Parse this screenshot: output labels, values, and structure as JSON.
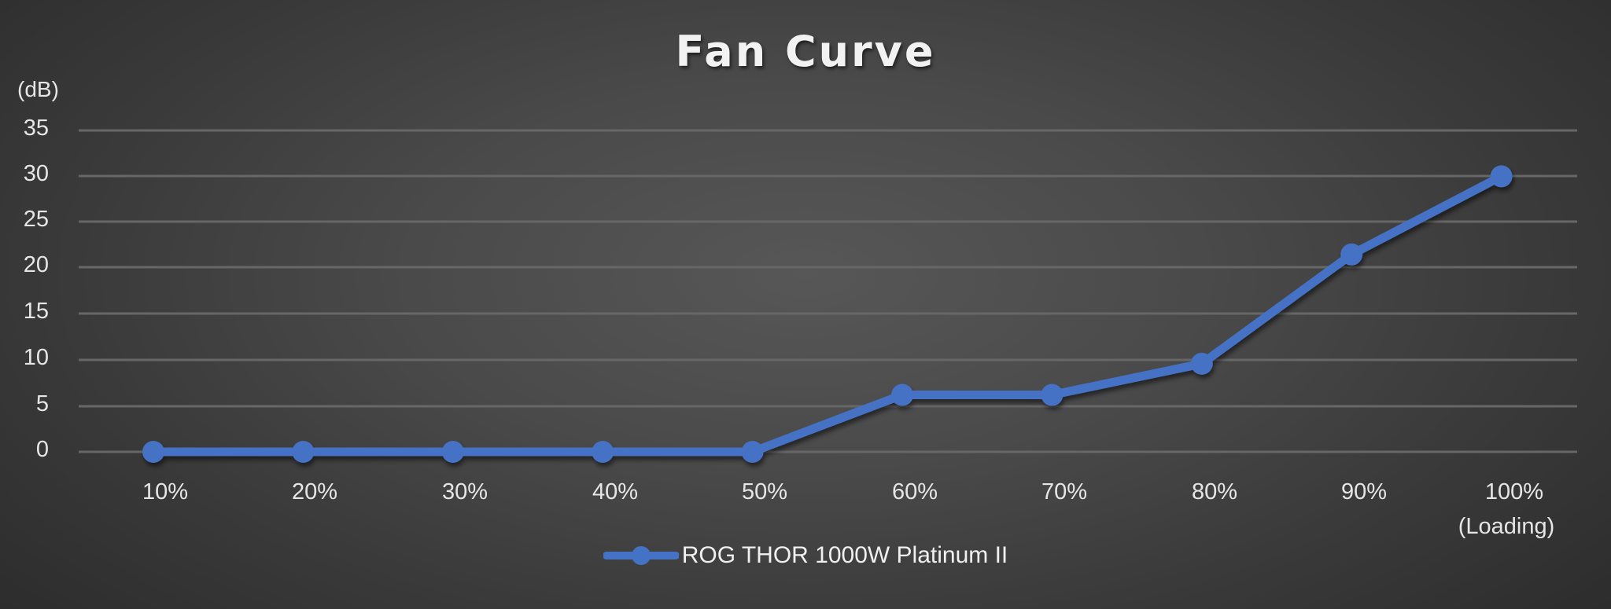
{
  "chart_data": {
    "type": "line",
    "title": "Fan Curve",
    "xlabel": "",
    "ylabel": "(dB)",
    "categories": [
      "10%",
      "20%",
      "30%",
      "40%",
      "50%",
      "60%",
      "70%",
      "80%",
      "90%",
      "100%\n(Loading)"
    ],
    "series": [
      {
        "name": "ROG THOR 1000W Platinum II",
        "color": "#4472c4",
        "values": [
          0,
          0,
          0,
          0,
          0,
          6.2,
          6.2,
          9.6,
          21.5,
          30
        ]
      }
    ],
    "ylim": [
      0,
      35
    ],
    "yticks": [
      0,
      5,
      10,
      15,
      20,
      25,
      30,
      35
    ],
    "grid": true,
    "legend_position": "bottom"
  },
  "title": "Fan Curve",
  "y_unit": "(dB)",
  "y_ticks": [
    "35",
    "30",
    "25",
    "20",
    "15",
    "10",
    "5",
    "0"
  ],
  "x_ticks": [
    "10%",
    "20%",
    "30%",
    "40%",
    "50%",
    "60%",
    "70%",
    "80%",
    "90%",
    "100%"
  ],
  "x_tick_sub": "(Loading)",
  "legend": {
    "label": "ROG THOR 1000W Platinum II",
    "color": "#4472c4"
  },
  "colors": {
    "line": "#4472c4",
    "grid": "#6a6a6a",
    "text": "#e6e6e6"
  }
}
